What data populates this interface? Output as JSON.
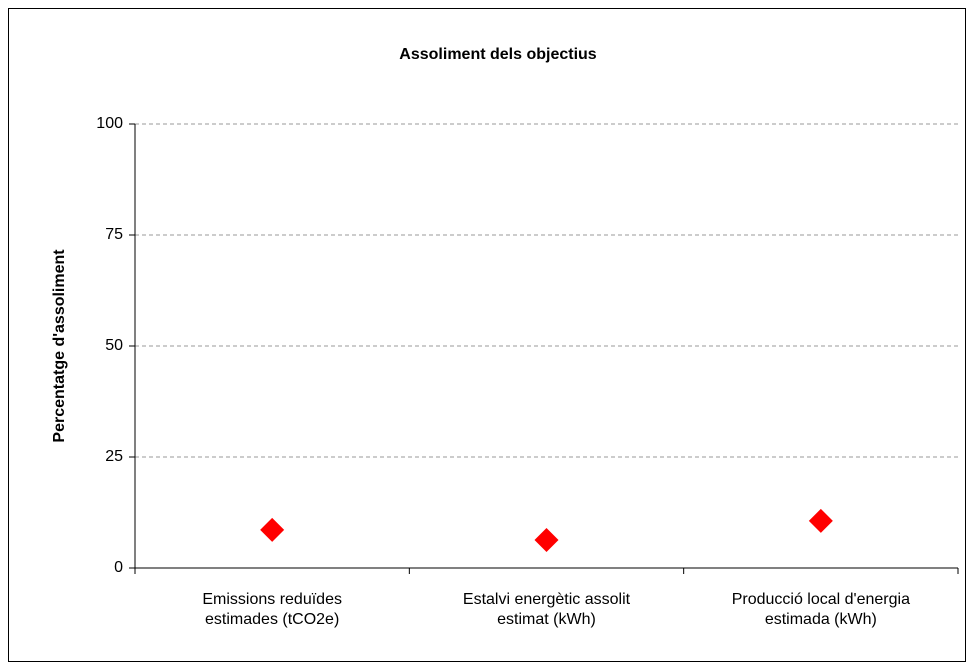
{
  "chart_data": {
    "type": "scatter",
    "title": "Assoliment dels objectius",
    "ylabel": "Percentatge d'assoliment",
    "categories": [
      "Emissions reduïdes estimades (tCO2e)",
      "Estalvi energètic assolit estimat (kWh)",
      "Producció local d'energia estimada (kWh)"
    ],
    "values": [
      8.6,
      6.3,
      10.6
    ],
    "color": "#ff0000",
    "marker": "diamond",
    "ylim": [
      0,
      100
    ],
    "yticks": [
      0,
      25,
      50,
      75,
      100
    ],
    "grid": true
  }
}
